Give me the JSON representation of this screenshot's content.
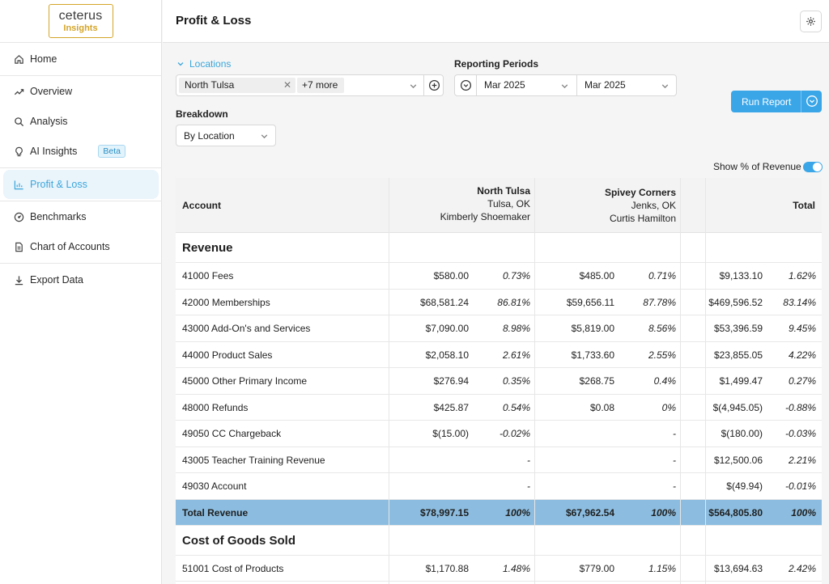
{
  "logo": {
    "line1": "ceterus",
    "line2": "Insights"
  },
  "sidebar": {
    "items": [
      {
        "label": "Home"
      },
      {
        "label": "Overview"
      },
      {
        "label": "Analysis"
      },
      {
        "label": "AI Insights",
        "badge": "Beta"
      },
      {
        "label": "Profit & Loss"
      },
      {
        "label": "Benchmarks"
      },
      {
        "label": "Chart of Accounts"
      },
      {
        "label": "Export Data"
      }
    ]
  },
  "header": {
    "title": "Profit & Loss"
  },
  "filters": {
    "locations_label": "Locations",
    "location_chip": "North Tulsa",
    "more_chip": "+7 more",
    "reporting_label": "Reporting Periods",
    "period_start": "Mar 2025",
    "period_end": "Mar 2025",
    "breakdown_label": "Breakdown",
    "breakdown_value": "By Location",
    "run_label": "Run Report",
    "toggle_label": "Show % of Revenue",
    "toggle_on": true
  },
  "colors": {
    "accent": "#3aa6e8",
    "total_row": "#8cbde0",
    "logo_gold": "#d4a52a"
  },
  "table": {
    "account_header": "Account",
    "total_header": "Total",
    "locations": [
      {
        "name": "North Tulsa",
        "city": "Tulsa, OK",
        "owner": "Kimberly Shoemaker"
      },
      {
        "name": "Spivey Corners",
        "city": "Jenks, OK",
        "owner": "Curtis Hamilton"
      }
    ],
    "rows": [
      {
        "kind": "section",
        "account": "Revenue"
      },
      {
        "account": "41000 Fees",
        "v1": "$580.00",
        "p1": "0.73%",
        "v2": "$485.00",
        "p2": "0.71%",
        "tv": "$9,133.10",
        "tp": "1.62%"
      },
      {
        "account": "42000 Memberships",
        "v1": "$68,581.24",
        "p1": "86.81%",
        "v2": "$59,656.11",
        "p2": "87.78%",
        "tv": "$469,596.52",
        "tp": "83.14%"
      },
      {
        "account": "43000 Add-On's and Services",
        "v1": "$7,090.00",
        "p1": "8.98%",
        "v2": "$5,819.00",
        "p2": "8.56%",
        "tv": "$53,396.59",
        "tp": "9.45%"
      },
      {
        "account": "44000 Product Sales",
        "v1": "$2,058.10",
        "p1": "2.61%",
        "v2": "$1,733.60",
        "p2": "2.55%",
        "tv": "$23,855.05",
        "tp": "4.22%"
      },
      {
        "account": "45000 Other Primary Income",
        "v1": "$276.94",
        "p1": "0.35%",
        "v2": "$268.75",
        "p2": "0.4%",
        "tv": "$1,499.47",
        "tp": "0.27%"
      },
      {
        "account": "48000 Refunds",
        "v1": "$425.87",
        "p1": "0.54%",
        "v2": "$0.08",
        "p2": "0%",
        "tv": "$(4,945.05)",
        "tp": "-0.88%"
      },
      {
        "account": "49050 CC Chargeback",
        "v1": "$(15.00)",
        "p1": "-0.02%",
        "v2": "",
        "p2": "-",
        "tv": "$(180.00)",
        "tp": "-0.03%"
      },
      {
        "account": "43005 Teacher Training Revenue",
        "v1": "",
        "p1": "-",
        "v2": "",
        "p2": "-",
        "tv": "$12,500.06",
        "tp": "2.21%"
      },
      {
        "account": "49030 Account",
        "v1": "",
        "p1": "-",
        "v2": "",
        "p2": "-",
        "tv": "$(49.94)",
        "tp": "-0.01%"
      },
      {
        "kind": "total",
        "account": "Total Revenue",
        "v1": "$78,997.15",
        "p1": "100%",
        "v2": "$67,962.54",
        "p2": "100%",
        "tv": "$564,805.80",
        "tp": "100%"
      },
      {
        "kind": "section",
        "account": "Cost of Goods Sold"
      },
      {
        "account": "51001 Cost of Products",
        "v1": "$1,170.88",
        "p1": "1.48%",
        "v2": "$779.00",
        "p2": "1.15%",
        "tv": "$13,694.63",
        "tp": "2.42%"
      }
    ]
  }
}
